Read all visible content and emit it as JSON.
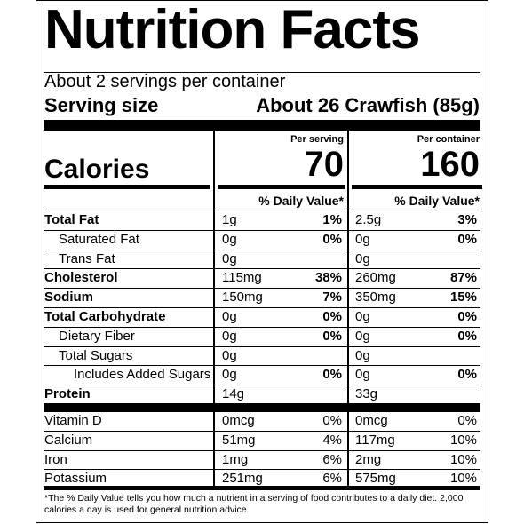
{
  "label": {
    "title": "Nutrition Facts",
    "servings_per_container": "About 2 servings per container",
    "serving_size_label": "Serving size",
    "serving_size_value": "About 26 Crawfish (85g)",
    "per_serving_header": "Per serving",
    "per_container_header": "Per container",
    "calories_label": "Calories",
    "calories_per_serving": "70",
    "calories_per_container": "160",
    "dv_header_serving": "% Daily Value*",
    "dv_header_container": "% Daily Value*",
    "nutrients": [
      {
        "name": "Total Fat",
        "bold": true,
        "indent": 0,
        "serv_amt": "1g",
        "serv_dv": "1%",
        "cont_amt": "2.5g",
        "cont_dv": "3%"
      },
      {
        "name": "Saturated Fat",
        "bold": false,
        "indent": 1,
        "serv_amt": "0g",
        "serv_dv": "0%",
        "cont_amt": "0g",
        "cont_dv": "0%"
      },
      {
        "name": "Trans Fat",
        "bold": false,
        "indent": 1,
        "serv_amt": "0g",
        "serv_dv": "",
        "cont_amt": "0g",
        "cont_dv": ""
      },
      {
        "name": "Cholesterol",
        "bold": true,
        "indent": 0,
        "serv_amt": "115mg",
        "serv_dv": "38%",
        "cont_amt": "260mg",
        "cont_dv": "87%"
      },
      {
        "name": "Sodium",
        "bold": true,
        "indent": 0,
        "serv_amt": "150mg",
        "serv_dv": "7%",
        "cont_amt": "350mg",
        "cont_dv": "15%"
      },
      {
        "name": "Total Carbohydrate",
        "bold": true,
        "indent": 0,
        "serv_amt": "0g",
        "serv_dv": "0%",
        "cont_amt": "0g",
        "cont_dv": "0%"
      },
      {
        "name": "Dietary Fiber",
        "bold": false,
        "indent": 1,
        "serv_amt": "0g",
        "serv_dv": "0%",
        "cont_amt": "0g",
        "cont_dv": "0%"
      },
      {
        "name": "Total Sugars",
        "bold": false,
        "indent": 1,
        "serv_amt": "0g",
        "serv_dv": "",
        "cont_amt": "0g",
        "cont_dv": ""
      },
      {
        "name": "Includes Added Sugars",
        "bold": false,
        "indent": 2,
        "serv_amt": "0g",
        "serv_dv": "0%",
        "cont_amt": "0g",
        "cont_dv": "0%"
      },
      {
        "name": "Protein",
        "bold": true,
        "indent": 0,
        "serv_amt": "14g",
        "serv_dv": "",
        "cont_amt": "33g",
        "cont_dv": ""
      }
    ],
    "vitamins": [
      {
        "name": "Vitamin D",
        "serv_amt": "0mcg",
        "serv_dv": "0%",
        "cont_amt": "0mcg",
        "cont_dv": "0%"
      },
      {
        "name": "Calcium",
        "serv_amt": "51mg",
        "serv_dv": "4%",
        "cont_amt": "117mg",
        "cont_dv": "10%"
      },
      {
        "name": "Iron",
        "serv_amt": "1mg",
        "serv_dv": "6%",
        "cont_amt": "2mg",
        "cont_dv": "10%"
      },
      {
        "name": "Potassium",
        "serv_amt": "251mg",
        "serv_dv": "6%",
        "cont_amt": "575mg",
        "cont_dv": "10%"
      }
    ],
    "footnote": "*The % Daily Value tells you how much a nutrient in a serving of food contributes to a daily diet. 2,000 calories a day is used for general nutrition advice."
  }
}
